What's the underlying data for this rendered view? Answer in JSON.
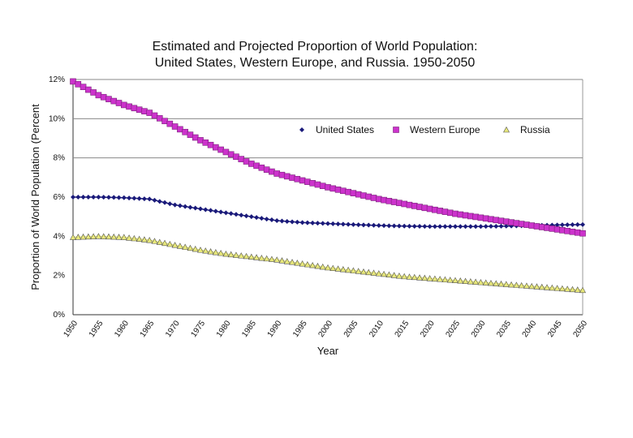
{
  "chart_data": {
    "type": "line",
    "title_lines": [
      "Estimated and Projected Proportion of World Population:",
      "United States, Western Europe, and Russia. 1950-2050"
    ],
    "xlabel": "Year",
    "ylabel": "Proportion of World Population (Percent",
    "xlim": [
      1950,
      2050
    ],
    "ylim": [
      0,
      12
    ],
    "x_ticks": [
      1950,
      1955,
      1960,
      1965,
      1970,
      1975,
      1980,
      1985,
      1990,
      1995,
      2000,
      2005,
      2010,
      2015,
      2020,
      2025,
      2030,
      2035,
      2040,
      2045,
      2050
    ],
    "x_tick_labels": [
      "1950",
      "1955",
      "1960",
      "1965",
      "1970",
      "1975",
      "1980",
      "1985",
      "1990",
      "1995",
      "2000",
      "2005",
      "2010",
      "2015",
      "2020",
      "2025",
      "2030",
      "2035",
      "2040",
      "2045",
      "2050"
    ],
    "y_ticks": [
      0,
      2,
      4,
      6,
      8,
      10,
      12
    ],
    "y_tick_labels": [
      "0%",
      "2%",
      "4%",
      "6%",
      "8%",
      "10%",
      "12%"
    ],
    "gridlines_y": [
      8,
      10,
      12
    ],
    "legend": {
      "position": "top-right"
    },
    "series": [
      {
        "name": "United States",
        "color": "#1a1a7a",
        "marker": "diamond",
        "x": [
          1950,
          1955,
          1960,
          1965,
          1970,
          1975,
          1980,
          1985,
          1990,
          1995,
          2000,
          2005,
          2010,
          2015,
          2020,
          2025,
          2030,
          2035,
          2040,
          2045,
          2050
        ],
        "values": [
          6.0,
          6.0,
          5.97,
          5.9,
          5.6,
          5.4,
          5.2,
          5.0,
          4.8,
          4.7,
          4.65,
          4.6,
          4.55,
          4.52,
          4.5,
          4.5,
          4.5,
          4.52,
          4.55,
          4.58,
          4.6
        ]
      },
      {
        "name": "Western Europe",
        "color": "#cc33cc",
        "marker": "square",
        "x": [
          1950,
          1955,
          1960,
          1965,
          1970,
          1975,
          1980,
          1985,
          1990,
          1995,
          2000,
          2005,
          2010,
          2015,
          2020,
          2025,
          2030,
          2035,
          2040,
          2045,
          2050
        ],
        "values": [
          11.9,
          11.2,
          10.7,
          10.3,
          9.6,
          8.9,
          8.3,
          7.7,
          7.2,
          6.85,
          6.5,
          6.2,
          5.9,
          5.65,
          5.4,
          5.15,
          4.95,
          4.75,
          4.55,
          4.35,
          4.15
        ]
      },
      {
        "name": "Russia",
        "color": "#e8e87a",
        "marker": "triangle",
        "x": [
          1950,
          1955,
          1960,
          1965,
          1970,
          1975,
          1980,
          1985,
          1990,
          1995,
          2000,
          2005,
          2010,
          2015,
          2020,
          2025,
          2030,
          2035,
          2040,
          2045,
          2050
        ],
        "values": [
          3.95,
          4.0,
          3.95,
          3.8,
          3.55,
          3.3,
          3.1,
          2.95,
          2.8,
          2.6,
          2.4,
          2.25,
          2.1,
          1.95,
          1.85,
          1.75,
          1.65,
          1.55,
          1.45,
          1.35,
          1.25
        ]
      }
    ]
  }
}
